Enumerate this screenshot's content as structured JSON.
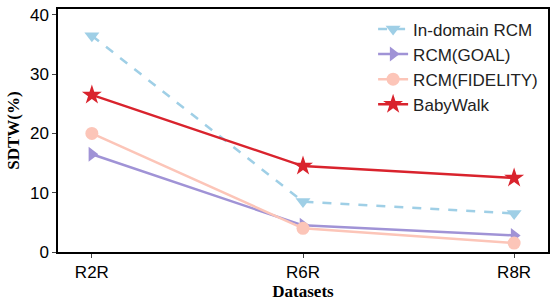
{
  "chart_data": {
    "type": "line",
    "x_label": "Datasets",
    "y_label": "SDTW(%)",
    "categories": [
      "R2R",
      "R6R",
      "R8R"
    ],
    "series": [
      {
        "name": "In-domain RCM",
        "color": "#9fcfe6",
        "marker": "triangle-down",
        "line_style": "dash",
        "values": [
          36.5,
          8.5,
          6.5
        ]
      },
      {
        "name": "RCM(GOAL)",
        "color": "#a093d6",
        "marker": "triangle-right",
        "line_style": "solid",
        "values": [
          16.5,
          4.5,
          2.8
        ]
      },
      {
        "name": "RCM(FIDELITY)",
        "color": "#fcc5b8",
        "marker": "circle",
        "line_style": "solid",
        "values": [
          20,
          4,
          1.5
        ]
      },
      {
        "name": "BabyWalk",
        "color": "#d9232d",
        "marker": "star",
        "line_style": "solid",
        "values": [
          26.5,
          14.5,
          12.5
        ]
      }
    ],
    "ylim": [
      0,
      41
    ],
    "yticks": [
      0,
      10,
      20,
      30,
      40
    ],
    "grid": false,
    "legend": "upper right"
  }
}
